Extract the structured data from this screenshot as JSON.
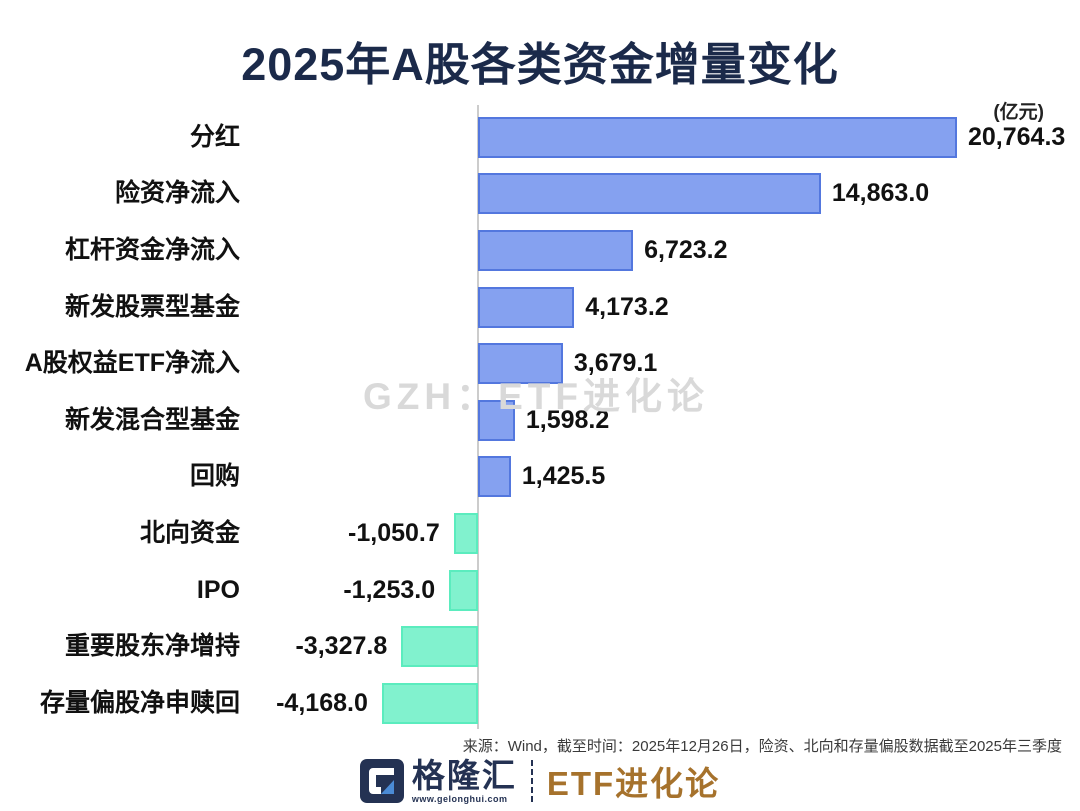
{
  "title": "2025年A股各类资金增量变化",
  "unit_label": "(亿元)",
  "watermark": "GZH：ETF进化论",
  "source_note": "来源：Wind，截至时间：2025年12月26日，险资、北向和存量偏股数据截至2025年三季度",
  "footer": {
    "brand_name": "格隆汇",
    "brand_url": "www.gelonghui.com",
    "account_name": "ETF进化论"
  },
  "colors": {
    "title": "#1b2a4a",
    "positive_fill": "#85a1f0",
    "positive_border": "#5377de",
    "negative_fill": "#81f2ce",
    "negative_border": "#5becbe",
    "axis_line": "#cccccc",
    "watermark": "#d9d9d9",
    "brand_navy": "#243253",
    "account_bronze": "#a6722c"
  },
  "chart_data": {
    "type": "bar",
    "orientation": "horizontal",
    "title": "2025年A股各类资金增量变化",
    "unit": "亿元",
    "legend": false,
    "grid": false,
    "xlim": [
      -4168.0,
      20764.3
    ],
    "categories": [
      "分红",
      "险资净流入",
      "杠杆资金净流入",
      "新发股票型基金",
      "A股权益ETF净流入",
      "新发混合型基金",
      "回购",
      "北向资金",
      "IPO",
      "重要股东净增持",
      "存量偏股净申赎回"
    ],
    "values": [
      20764.3,
      14863.0,
      6723.2,
      4173.2,
      3679.1,
      1598.2,
      1425.5,
      -1050.7,
      -1253.0,
      -3327.8,
      -4168.0
    ],
    "value_labels": [
      "20,764.3",
      "14,863.0",
      "6,723.2",
      "4,173.2",
      "3,679.1",
      "1,598.2",
      "1,425.5",
      "-1,050.7",
      "-1,253.0",
      "-3,327.8",
      "-4,168.0"
    ]
  }
}
